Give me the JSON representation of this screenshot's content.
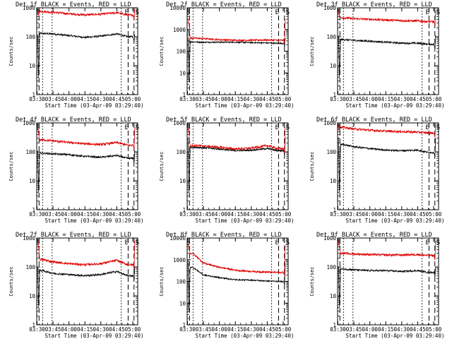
{
  "colors": {
    "events": "#000000",
    "lld": "#e00000",
    "frame": "#000000",
    "background": "#ffffff"
  },
  "chart_data": [
    {
      "type": "line",
      "title": "Det 1f BLACK = Events, RED = LLD",
      "xlabel": "Start Time (03-Apr-09 03:29:40)",
      "ylabel": "Counts/sec",
      "yscale": "log",
      "ylim": [
        1,
        1000
      ],
      "ytick_labels": [
        "1",
        "10",
        "100",
        "1000"
      ],
      "xtick_labels": [
        "03:30",
        "03:45",
        "04:00",
        "04:15",
        "04:30",
        "04:45",
        "05:00"
      ],
      "markers": [
        "S",
        "E",
        "S"
      ],
      "series": [
        {
          "name": "Events",
          "color": "#000000",
          "start": 120,
          "x": [
            "03:35",
            "03:45",
            "04:00",
            "04:15",
            "04:30",
            "04:45",
            "04:55"
          ],
          "values": [
            130,
            125,
            110,
            95,
            105,
            125,
            100
          ]
        },
        {
          "name": "LLD",
          "color": "#e00000",
          "start": 900,
          "x": [
            "03:35",
            "03:45",
            "04:00",
            "04:15",
            "04:30",
            "04:45",
            "04:55"
          ],
          "values": [
            750,
            700,
            620,
            570,
            600,
            680,
            560
          ]
        }
      ]
    },
    {
      "type": "line",
      "title": "Det 2f BLACK = Events, RED = LLD",
      "xlabel": "Start Time (03-Apr-09 03:29:40)",
      "ylabel": "Counts/sec",
      "yscale": "log",
      "ylim": [
        1,
        10000
      ],
      "ytick_labels": [
        "1",
        "10",
        "100",
        "1000",
        "10000"
      ],
      "xtick_labels": [
        "03:30",
        "03:45",
        "04:00",
        "04:15",
        "04:30",
        "04:45",
        "05:00"
      ],
      "markers": [
        "S",
        "E",
        "S"
      ],
      "series": [
        {
          "name": "Events",
          "color": "#000000",
          "start": 400,
          "x": [
            "03:35",
            "03:45",
            "04:00",
            "04:15",
            "04:30",
            "04:45",
            "04:55"
          ],
          "values": [
            270,
            260,
            260,
            260,
            250,
            240,
            230
          ]
        },
        {
          "name": "LLD",
          "color": "#e00000",
          "start": 3000,
          "x": [
            "03:35",
            "03:45",
            "04:00",
            "04:15",
            "04:30",
            "04:45",
            "04:55"
          ],
          "values": [
            400,
            380,
            340,
            320,
            320,
            330,
            320
          ]
        }
      ]
    },
    {
      "type": "line",
      "title": "Det 3f BLACK = Events, RED = LLD",
      "xlabel": "Start Time (03-Apr-09 03:29:40)",
      "ylabel": "Counts/sec",
      "yscale": "log",
      "ylim": [
        1,
        1000
      ],
      "ytick_labels": [
        "1",
        "10",
        "100",
        "1000"
      ],
      "xtick_labels": [
        "03:30",
        "03:45",
        "04:00",
        "04:15",
        "04:30",
        "04:45",
        "05:00"
      ],
      "markers": [
        "S",
        "E",
        "S"
      ],
      "series": [
        {
          "name": "Events",
          "color": "#000000",
          "start": 110,
          "x": [
            "03:35",
            "03:45",
            "04:00",
            "04:15",
            "04:30",
            "04:45",
            "04:55"
          ],
          "values": [
            80,
            75,
            70,
            65,
            60,
            60,
            55
          ]
        },
        {
          "name": "LLD",
          "color": "#e00000",
          "start": 800,
          "x": [
            "03:35",
            "03:45",
            "04:00",
            "04:15",
            "04:30",
            "04:45",
            "04:55"
          ],
          "values": [
            450,
            420,
            400,
            380,
            360,
            350,
            330
          ]
        }
      ]
    },
    {
      "type": "line",
      "title": "Det 4f BLACK = Events, RED = LLD",
      "xlabel": "Start Time (03-Apr-09 03:29:40)",
      "ylabel": "Counts/sec",
      "yscale": "log",
      "ylim": [
        1,
        1000
      ],
      "ytick_labels": [
        "1",
        "10",
        "100",
        "1000"
      ],
      "xtick_labels": [
        "03:30",
        "03:45",
        "04:00",
        "04:15",
        "04:30",
        "04:45",
        "05:00"
      ],
      "markers": [
        "S",
        "E",
        "S"
      ],
      "series": [
        {
          "name": "Events",
          "color": "#000000",
          "start": 110,
          "x": [
            "03:35",
            "03:45",
            "04:00",
            "04:15",
            "04:30",
            "04:45",
            "04:55"
          ],
          "values": [
            90,
            85,
            80,
            70,
            65,
            75,
            60
          ]
        },
        {
          "name": "LLD",
          "color": "#e00000",
          "start": 700,
          "x": [
            "03:35",
            "03:45",
            "04:00",
            "04:15",
            "04:30",
            "04:45",
            "04:55"
          ],
          "values": [
            260,
            240,
            210,
            190,
            180,
            210,
            170
          ]
        }
      ]
    },
    {
      "type": "line",
      "title": "Det 5f BLACK = Events, RED = LLD",
      "xlabel": "Start Time (03-Apr-09 03:29:40)",
      "ylabel": "Counts/sec",
      "yscale": "log",
      "ylim": [
        1,
        1000
      ],
      "ytick_labels": [
        "1",
        "10",
        "100",
        "1000"
      ],
      "xtick_labels": [
        "03:30",
        "03:45",
        "04:00",
        "04:15",
        "04:30",
        "04:45",
        "05:00"
      ],
      "markers": [
        "S",
        "E",
        "S"
      ],
      "series": [
        {
          "name": "Events",
          "color": "#000000",
          "start": 300,
          "x": [
            "03:35",
            "03:45",
            "04:00",
            "04:15",
            "04:30",
            "04:45",
            "04:55"
          ],
          "values": [
            145,
            140,
            125,
            110,
            115,
            130,
            110
          ]
        },
        {
          "name": "LLD",
          "color": "#e00000",
          "start": 700,
          "x": [
            "03:35",
            "03:45",
            "04:00",
            "04:15",
            "04:30",
            "04:45",
            "04:55"
          ],
          "values": [
            165,
            160,
            145,
            125,
            135,
            165,
            130
          ]
        }
      ]
    },
    {
      "type": "line",
      "title": "Det 6f BLACK = Events, RED = LLD",
      "xlabel": "Start Time (03-Apr-09 03:29:40)",
      "ylabel": "Counts/sec",
      "yscale": "log",
      "ylim": [
        1,
        1000
      ],
      "ytick_labels": [
        "1",
        "10",
        "100",
        "1000"
      ],
      "xtick_labels": [
        "03:30",
        "03:45",
        "04:00",
        "04:15",
        "04:30",
        "04:45",
        "05:00"
      ],
      "markers": [
        "S",
        "E",
        "S"
      ],
      "series": [
        {
          "name": "Events",
          "color": "#000000",
          "start": 300,
          "x": [
            "03:35",
            "03:45",
            "04:00",
            "04:15",
            "04:30",
            "04:45",
            "04:55"
          ],
          "values": [
            180,
            150,
            130,
            115,
            110,
            115,
            95
          ]
        },
        {
          "name": "LLD",
          "color": "#e00000",
          "start": 900,
          "x": [
            "03:35",
            "03:45",
            "04:00",
            "04:15",
            "04:30",
            "04:45",
            "04:55"
          ],
          "values": [
            700,
            620,
            560,
            520,
            500,
            480,
            450
          ]
        }
      ]
    },
    {
      "type": "line",
      "title": "Det 7f BLACK = Events, RED = LLD",
      "xlabel": "Start Time (03-Apr-09 03:29:40)",
      "ylabel": "Counts/sec",
      "yscale": "log",
      "ylim": [
        1,
        1000
      ],
      "ytick_labels": [
        "1",
        "10",
        "100",
        "1000"
      ],
      "xtick_labels": [
        "03:30",
        "03:45",
        "04:00",
        "04:15",
        "04:30",
        "04:45",
        "05:00"
      ],
      "markers": [
        "S",
        "E",
        "S"
      ],
      "series": [
        {
          "name": "Events",
          "color": "#000000",
          "start": 100,
          "x": [
            "03:35",
            "03:45",
            "04:00",
            "04:15",
            "04:30",
            "04:45",
            "04:55"
          ],
          "values": [
            75,
            60,
            55,
            50,
            55,
            70,
            50
          ]
        },
        {
          "name": "LLD",
          "color": "#e00000",
          "start": 800,
          "x": [
            "03:35",
            "03:45",
            "04:00",
            "04:15",
            "04:30",
            "04:45",
            "04:55"
          ],
          "values": [
            180,
            150,
            130,
            120,
            130,
            170,
            120
          ]
        }
      ]
    },
    {
      "type": "line",
      "title": "Det 8f BLACK = Events, RED = LLD",
      "xlabel": "Start Time (03-Apr-09 03:29:40)",
      "ylabel": "Counts/sec",
      "yscale": "log",
      "ylim": [
        1,
        10000
      ],
      "ytick_labels": [
        "1",
        "10",
        "100",
        "1000",
        "10000"
      ],
      "xtick_labels": [
        "03:30",
        "03:45",
        "04:00",
        "04:15",
        "04:30",
        "04:45",
        "05:00"
      ],
      "markers": [
        "S",
        "E",
        "S"
      ],
      "series": [
        {
          "name": "Events",
          "color": "#000000",
          "start": 700,
          "x": [
            "03:35",
            "03:45",
            "04:00",
            "04:15",
            "04:30",
            "04:45",
            "04:55"
          ],
          "values": [
            450,
            200,
            150,
            120,
            115,
            105,
            100
          ]
        },
        {
          "name": "LLD",
          "color": "#e00000",
          "start": 5000,
          "x": [
            "03:35",
            "03:45",
            "04:00",
            "04:15",
            "04:30",
            "04:45",
            "04:55"
          ],
          "values": [
            2000,
            700,
            450,
            330,
            290,
            270,
            260
          ]
        }
      ]
    },
    {
      "type": "line",
      "title": "Det 9f BLACK = Events, RED = LLD",
      "xlabel": "Start Time (03-Apr-09 03:29:40)",
      "ylabel": "Counts/sec",
      "yscale": "log",
      "ylim": [
        1,
        1000
      ],
      "ytick_labels": [
        "1",
        "10",
        "100",
        "1000"
      ],
      "xtick_labels": [
        "03:30",
        "03:45",
        "04:00",
        "04:15",
        "04:30",
        "04:45",
        "05:00"
      ],
      "markers": [
        "S",
        "E",
        "S"
      ],
      "series": [
        {
          "name": "Events",
          "color": "#000000",
          "start": 100,
          "x": [
            "03:35",
            "03:45",
            "04:00",
            "04:15",
            "04:30",
            "04:45",
            "04:55"
          ],
          "values": [
            85,
            80,
            75,
            75,
            70,
            75,
            65
          ]
        },
        {
          "name": "LLD",
          "color": "#e00000",
          "start": 800,
          "x": [
            "03:35",
            "03:45",
            "04:00",
            "04:15",
            "04:30",
            "04:45",
            "04:55"
          ],
          "values": [
            300,
            280,
            270,
            260,
            260,
            270,
            250
          ]
        }
      ]
    }
  ]
}
